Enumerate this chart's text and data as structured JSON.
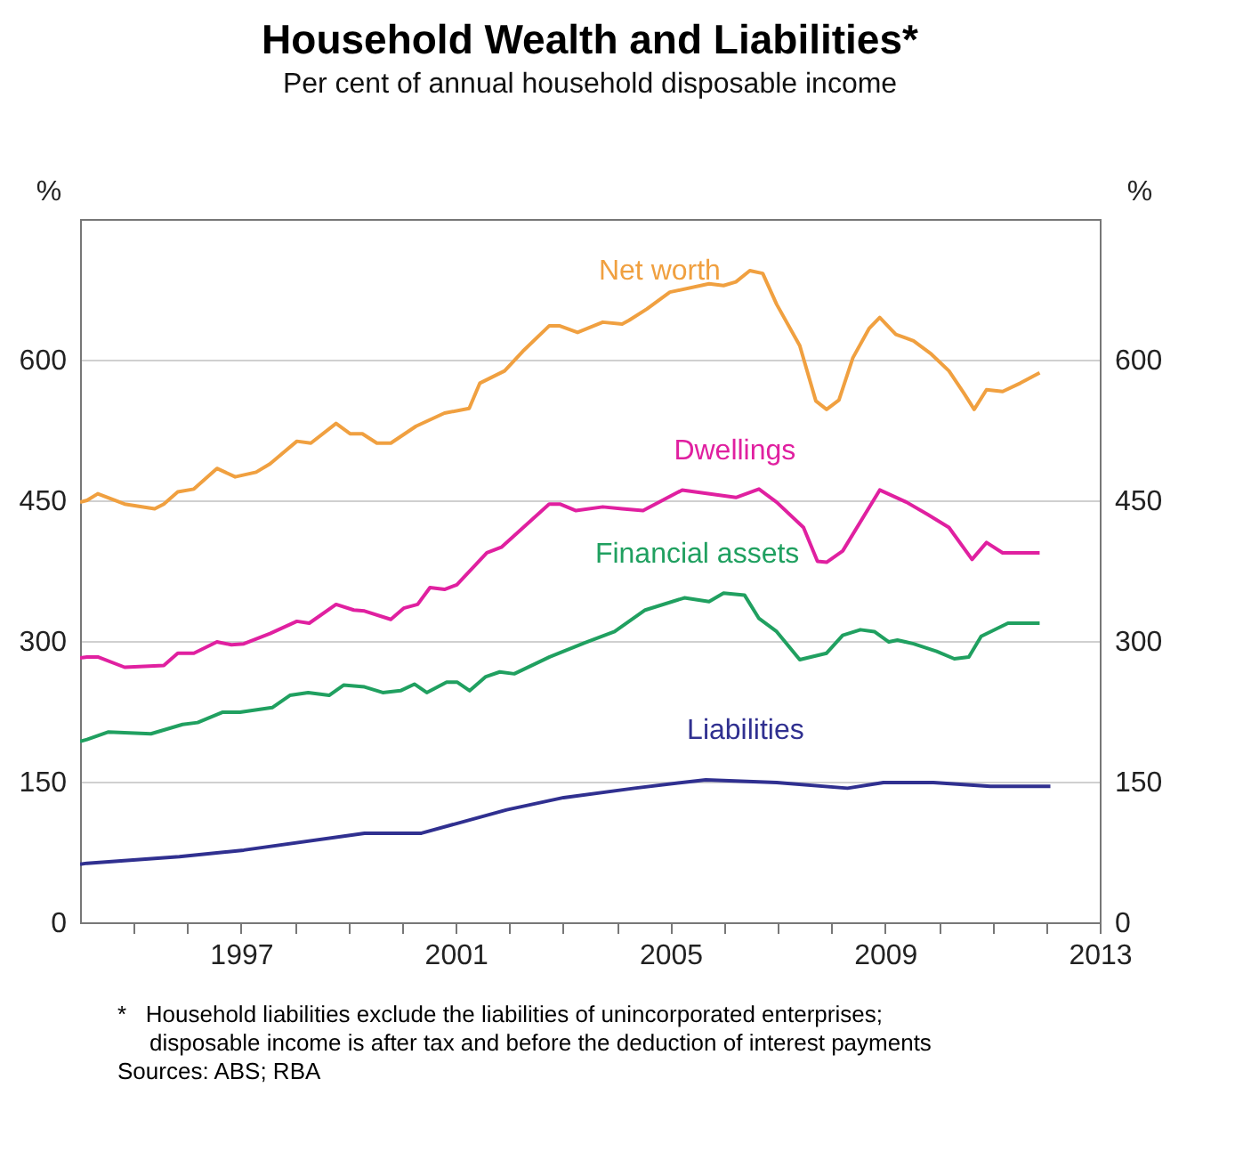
{
  "chart_data": {
    "type": "line",
    "title": "Household Wealth and Liabilities*",
    "subtitle": "Per cent of annual household disposable income",
    "ylabel": "%",
    "y2label": "%",
    "xlim": [
      1994,
      2013
    ],
    "xticks": [
      {
        "value": 1995,
        "label": null
      },
      {
        "value": 1996,
        "label": null
      },
      1997,
      {
        "value": 1998,
        "label": null
      },
      {
        "value": 1999,
        "label": null
      },
      {
        "value": 2000,
        "label": null
      },
      2001,
      {
        "value": 2002,
        "label": null
      },
      {
        "value": 2003,
        "label": null
      },
      {
        "value": 2004,
        "label": null
      },
      2005,
      {
        "value": 2006,
        "label": null
      },
      {
        "value": 2007,
        "label": null
      },
      {
        "value": 2008,
        "label": null
      },
      2009,
      {
        "value": 2010,
        "label": null
      },
      {
        "value": 2011,
        "label": null
      },
      {
        "value": 2012,
        "label": null
      },
      2013
    ],
    "ylim": [
      0,
      750
    ],
    "yticks": [
      0,
      150,
      300,
      450,
      600
    ],
    "y2lim": [
      0,
      750
    ],
    "y2ticks": [
      0,
      150,
      300,
      450,
      600
    ],
    "grid": "y",
    "legend": false,
    "line_style": "solid",
    "series": [
      {
        "name": "Net worth",
        "color": "#f0a040",
        "x": [
          1994.0,
          1994.13,
          1994.33,
          1994.83,
          1995.39,
          1995.56,
          1995.82,
          1996.12,
          1996.55,
          1996.89,
          1997.28,
          1997.54,
          1998.04,
          1998.3,
          1998.77,
          1999.03,
          1999.26,
          1999.53,
          1999.79,
          2000.26,
          2000.79,
          2001.25,
          2001.45,
          2001.91,
          2002.25,
          2002.74,
          2002.94,
          2003.27,
          2003.74,
          2004.1,
          2004.23,
          2004.56,
          2004.99,
          2005.72,
          2005.99,
          2006.22,
          2006.48,
          2006.72,
          2006.98,
          2007.41,
          2007.71,
          2007.91,
          2008.14,
          2008.4,
          2008.7,
          2008.9,
          2009.2,
          2009.53,
          2009.86,
          2010.19,
          2010.46,
          2010.66,
          2010.89,
          2011.19,
          2011.52,
          2011.88
        ],
        "values": [
          448,
          450,
          457,
          446,
          441,
          446,
          459,
          462,
          484,
          475,
          480,
          489,
          513,
          511,
          532,
          521,
          521,
          511,
          511,
          529,
          543,
          548,
          575,
          588,
          609,
          636,
          636,
          629,
          640,
          638,
          642,
          654,
          672,
          681,
          679,
          683,
          695,
          692,
          659,
          615,
          556,
          547,
          557,
          602,
          633,
          645,
          627,
          620,
          606,
          588,
          565,
          547,
          568,
          566,
          575,
          586
        ]
      },
      {
        "name": "Dwellings",
        "color": "#e020a0",
        "x": [
          1994.0,
          1994.13,
          1994.33,
          1994.83,
          1995.56,
          1995.82,
          1996.12,
          1996.55,
          1996.82,
          1997.05,
          1997.54,
          1998.04,
          1998.27,
          1998.77,
          1999.1,
          1999.3,
          1999.79,
          2000.03,
          2000.29,
          2000.52,
          2000.79,
          2001.02,
          2001.58,
          2001.85,
          2002.74,
          2002.94,
          2003.24,
          2003.74,
          2004.1,
          2004.49,
          2005.22,
          2006.22,
          2006.65,
          2006.98,
          2007.48,
          2007.74,
          2007.91,
          2008.21,
          2008.9,
          2009.4,
          2009.79,
          2010.19,
          2010.62,
          2010.89,
          2011.19,
          2011.88
        ],
        "values": [
          282,
          283,
          283,
          272,
          274,
          287,
          287,
          299,
          296,
          297,
          308,
          321,
          319,
          339,
          333,
          332,
          323,
          335,
          339,
          357,
          355,
          360,
          394,
          400,
          446,
          446,
          439,
          443,
          441,
          439,
          461,
          453,
          462,
          448,
          421,
          385,
          384,
          396,
          461,
          448,
          435,
          421,
          387,
          405,
          394,
          394
        ]
      },
      {
        "name": "Financial assets",
        "color": "#20a060",
        "x": [
          1994.0,
          1994.13,
          1994.53,
          1995.32,
          1995.91,
          1996.19,
          1996.65,
          1996.98,
          1997.58,
          1997.91,
          1998.25,
          1998.64,
          1998.91,
          1999.3,
          1999.64,
          1999.97,
          2000.23,
          2000.46,
          2000.83,
          2001.03,
          2001.26,
          2001.56,
          2001.82,
          2002.09,
          2002.75,
          2003.4,
          2003.96,
          2004.53,
          2005.26,
          2005.72,
          2005.99,
          2006.38,
          2006.65,
          2006.98,
          2007.41,
          2007.91,
          2008.21,
          2008.54,
          2008.8,
          2009.07,
          2009.23,
          2009.53,
          2009.96,
          2010.29,
          2010.56,
          2010.79,
          2011.29,
          2011.88
        ],
        "values": [
          193,
          195,
          203,
          201,
          211,
          213,
          224,
          224,
          229,
          242,
          245,
          242,
          253,
          251,
          245,
          247,
          254,
          245,
          256,
          256,
          247,
          262,
          267,
          265,
          283,
          298,
          310,
          333,
          346,
          342,
          351,
          349,
          324,
          310,
          280,
          287,
          306,
          312,
          310,
          299,
          301,
          297,
          289,
          281,
          283,
          305,
          319,
          319
        ]
      },
      {
        "name": "Liabilities",
        "color": "#303090",
        "x": [
          1994.0,
          1994.13,
          1995.85,
          1997.05,
          1999.3,
          2000.36,
          2001.95,
          2003.01,
          2004.33,
          2005.66,
          2006.98,
          2008.3,
          2008.97,
          2009.9,
          2010.96,
          2012.08
        ],
        "values": [
          62,
          63,
          70,
          77,
          95,
          95,
          120,
          133,
          143,
          152,
          149,
          143,
          149,
          149,
          145,
          145
        ]
      }
    ],
    "annotations": [
      "*   Household liabilities exclude the liabilities of unincorporated enterprises;\n     disposable income is after tax and before the deduction of interest payments",
      "Sources: ABS; RBA"
    ]
  }
}
